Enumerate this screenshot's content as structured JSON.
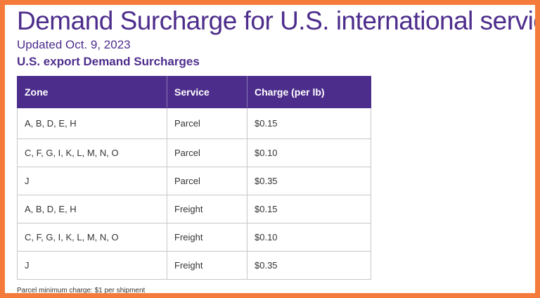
{
  "header": {
    "title": "Demand Surcharge for U.S. international services",
    "updated": "Updated Oct. 9, 2023",
    "section_title": "U.S. export Demand Surcharges"
  },
  "table": {
    "columns": [
      "Zone",
      "Service",
      "Charge (per lb)"
    ],
    "rows": [
      {
        "zone": "A, B, D, E, H",
        "service": "Parcel",
        "charge": "$0.15"
      },
      {
        "zone": "C, F, G, I, K, L, M, N, O",
        "service": "Parcel",
        "charge": "$0.10"
      },
      {
        "zone": "J",
        "service": "Parcel",
        "charge": "$0.35"
      },
      {
        "zone": "A, B, D, E, H",
        "service": "Freight",
        "charge": "$0.15"
      },
      {
        "zone": "C, F, G, I, K, L, M, N, O",
        "service": "Freight",
        "charge": "$0.10"
      },
      {
        "zone": "J",
        "service": "Freight",
        "charge": "$0.35"
      }
    ]
  },
  "footnote": "Parcel minimum charge: $1 per shipment",
  "colors": {
    "brand_purple": "#4d2d8c",
    "frame_orange": "#f47b3b"
  }
}
